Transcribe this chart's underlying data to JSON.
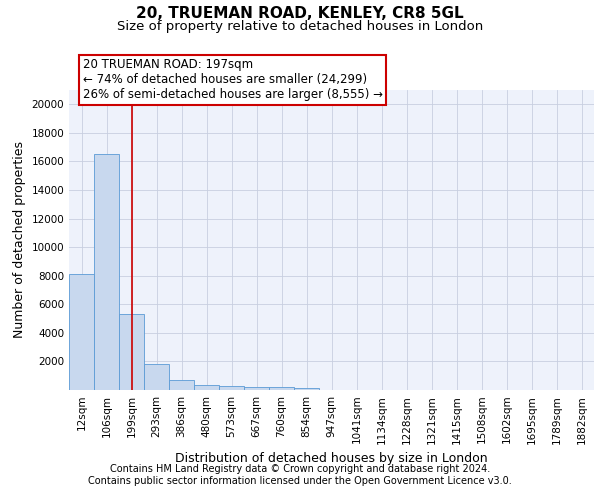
{
  "title1": "20, TRUEMAN ROAD, KENLEY, CR8 5GL",
  "title2": "Size of property relative to detached houses in London",
  "xlabel": "Distribution of detached houses by size in London",
  "ylabel": "Number of detached properties",
  "bar_labels": [
    "12sqm",
    "106sqm",
    "199sqm",
    "293sqm",
    "386sqm",
    "480sqm",
    "573sqm",
    "667sqm",
    "760sqm",
    "854sqm",
    "947sqm",
    "1041sqm",
    "1134sqm",
    "1228sqm",
    "1321sqm",
    "1415sqm",
    "1508sqm",
    "1602sqm",
    "1695sqm",
    "1789sqm",
    "1882sqm"
  ],
  "bar_values": [
    8100,
    16500,
    5300,
    1850,
    700,
    380,
    290,
    230,
    200,
    150,
    0,
    0,
    0,
    0,
    0,
    0,
    0,
    0,
    0,
    0,
    0
  ],
  "bar_color": "#c8d8ee",
  "bar_edge_color": "#5b9bd5",
  "vline_x": 2,
  "vline_color": "#cc0000",
  "annotation_text": "20 TRUEMAN ROAD: 197sqm\n← 74% of detached houses are smaller (24,299)\n26% of semi-detached houses are larger (8,555) →",
  "ylim": [
    0,
    21000
  ],
  "yticks": [
    0,
    2000,
    4000,
    6000,
    8000,
    10000,
    12000,
    14000,
    16000,
    18000,
    20000
  ],
  "footnote1": "Contains HM Land Registry data © Crown copyright and database right 2024.",
  "footnote2": "Contains public sector information licensed under the Open Government Licence v3.0.",
  "background_color": "#eef2fb",
  "grid_color": "#c8cfe0",
  "title1_fontsize": 11,
  "title2_fontsize": 9.5,
  "axis_label_fontsize": 9,
  "tick_fontsize": 7.5,
  "annotation_fontsize": 8.5,
  "footnote_fontsize": 7
}
